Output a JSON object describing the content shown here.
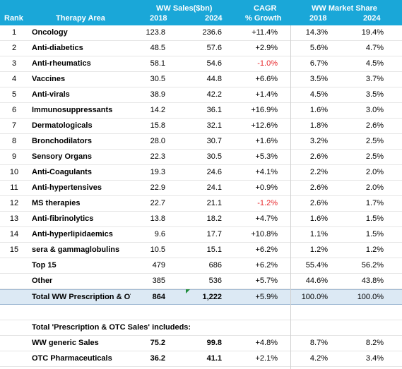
{
  "header": {
    "rank": "Rank",
    "therapy_area": "Therapy Area",
    "ww_sales": "WW Sales($bn)",
    "cagr": "CAGR",
    "growth": "% Growth",
    "market_share": "WW Market Share",
    "y2018": "2018",
    "y2024": "2024"
  },
  "rows": [
    {
      "rank": "1",
      "name": "Oncology",
      "v2018": "123.8",
      "v2024": "236.6",
      "cagr": "+11.4%",
      "s2018": "14.3%",
      "s2024": "19.4%"
    },
    {
      "rank": "2",
      "name": "Anti-diabetics",
      "v2018": "48.5",
      "v2024": "57.6",
      "cagr": "+2.9%",
      "s2018": "5.6%",
      "s2024": "4.7%"
    },
    {
      "rank": "3",
      "name": "Anti-rheumatics",
      "v2018": "58.1",
      "v2024": "54.6",
      "cagr": "-1.0%",
      "s2018": "6.7%",
      "s2024": "4.5%"
    },
    {
      "rank": "4",
      "name": "Vaccines",
      "v2018": "30.5",
      "v2024": "44.8",
      "cagr": "+6.6%",
      "s2018": "3.5%",
      "s2024": "3.7%"
    },
    {
      "rank": "5",
      "name": "Anti-virals",
      "v2018": "38.9",
      "v2024": "42.2",
      "cagr": "+1.4%",
      "s2018": "4.5%",
      "s2024": "3.5%"
    },
    {
      "rank": "6",
      "name": "Immunosuppressants",
      "v2018": "14.2",
      "v2024": "36.1",
      "cagr": "+16.9%",
      "s2018": "1.6%",
      "s2024": "3.0%"
    },
    {
      "rank": "7",
      "name": "Dermatologicals",
      "v2018": "15.8",
      "v2024": "32.1",
      "cagr": "+12.6%",
      "s2018": "1.8%",
      "s2024": "2.6%"
    },
    {
      "rank": "8",
      "name": "Bronchodilators",
      "v2018": "28.0",
      "v2024": "30.7",
      "cagr": "+1.6%",
      "s2018": "3.2%",
      "s2024": "2.5%"
    },
    {
      "rank": "9",
      "name": "Sensory Organs",
      "v2018": "22.3",
      "v2024": "30.5",
      "cagr": "+5.3%",
      "s2018": "2.6%",
      "s2024": "2.5%"
    },
    {
      "rank": "10",
      "name": "Anti-Coagulants",
      "v2018": "19.3",
      "v2024": "24.6",
      "cagr": "+4.1%",
      "s2018": "2.2%",
      "s2024": "2.0%"
    },
    {
      "rank": "11",
      "name": "Anti-hypertensives",
      "v2018": "22.9",
      "v2024": "24.1",
      "cagr": "+0.9%",
      "s2018": "2.6%",
      "s2024": "2.0%"
    },
    {
      "rank": "12",
      "name": "MS therapies",
      "v2018": "22.7",
      "v2024": "21.1",
      "cagr": "-1.2%",
      "s2018": "2.6%",
      "s2024": "1.7%"
    },
    {
      "rank": "13",
      "name": "Anti-fibrinolytics",
      "v2018": "13.8",
      "v2024": "18.2",
      "cagr": "+4.7%",
      "s2018": "1.6%",
      "s2024": "1.5%"
    },
    {
      "rank": "14",
      "name": "Anti-hyperlipidaemics",
      "v2018": "9.6",
      "v2024": "17.7",
      "cagr": "+10.8%",
      "s2018": "1.1%",
      "s2024": "1.5%"
    },
    {
      "rank": "15",
      "name": "sera & gammaglobulins",
      "v2018": "10.5",
      "v2024": "15.1",
      "cagr": "+6.2%",
      "s2018": "1.2%",
      "s2024": "1.2%"
    }
  ],
  "top15": {
    "name": "Top 15",
    "v2018": "479",
    "v2024": "686",
    "cagr": "+6.2%",
    "s2018": "55.4%",
    "s2024": "56.2%"
  },
  "other": {
    "name": "Other",
    "v2018": "385",
    "v2024": "536",
    "cagr": "+5.7%",
    "s2018": "44.6%",
    "s2024": "43.8%"
  },
  "total": {
    "name": "Total WW Prescription & OTC Sales",
    "v2018": "864",
    "v2024": "1,222",
    "cagr": "+5.9%",
    "s2018": "100.0%",
    "s2024": "100.0%"
  },
  "includes_label": "Total 'Prescription & OTC Sales' includeds:",
  "generic": {
    "name": "WW generic Sales",
    "v2018": "75.2",
    "v2024": "99.8",
    "cagr": "+4.8%",
    "s2018": "8.7%",
    "s2024": "8.2%"
  },
  "otc": {
    "name": "OTC Pharmaceuticals",
    "v2018": "36.2",
    "v2024": "41.1",
    "cagr": "+2.1%",
    "s2018": "4.2%",
    "s2024": "3.4%"
  },
  "colors": {
    "header_bg": "#1aa7d8",
    "negative": "#e8262a",
    "total_bg": "#dce9f4"
  }
}
